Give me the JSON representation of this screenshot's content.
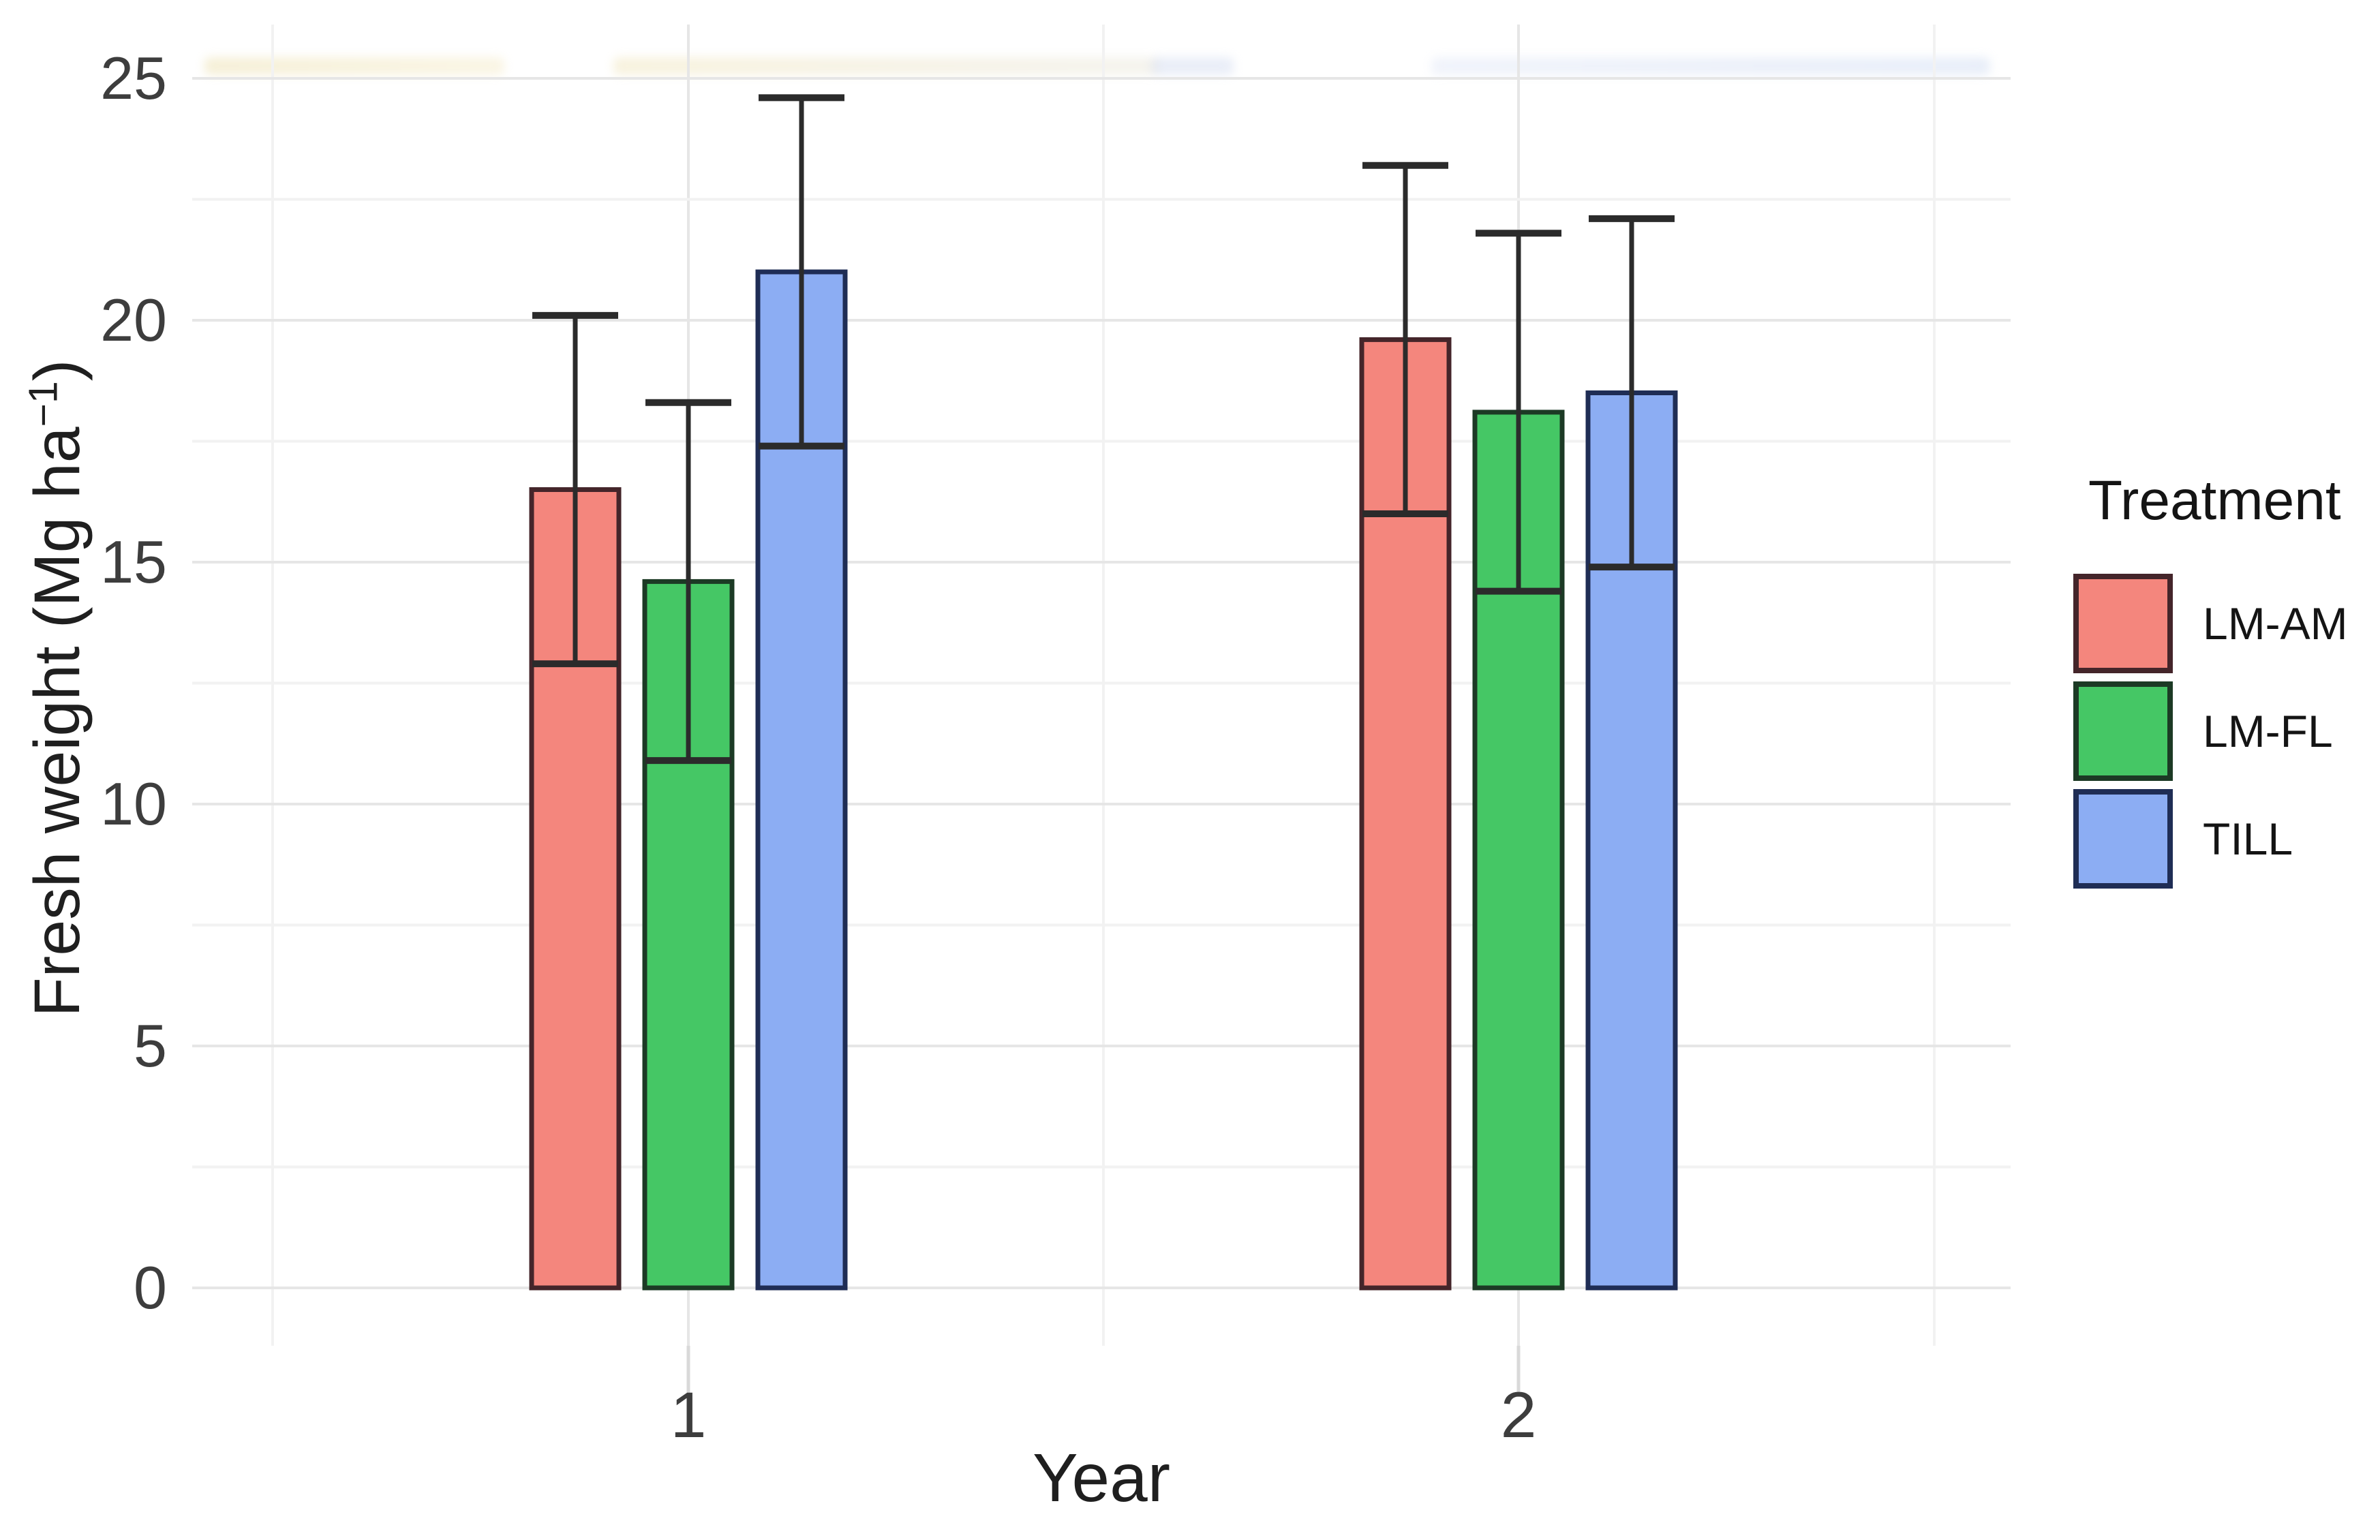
{
  "figure": {
    "background": "#ffffff",
    "note_top_edge": "faint remnants of a cropped-off title strip"
  },
  "chart_data": {
    "type": "bar",
    "title": "",
    "xlabel": "Year",
    "ylabel": "Fresh weight (Mg ha⁻¹)",
    "ylabel_parts": {
      "base": "Fresh weight (Mg ha",
      "sup": "−1",
      "end": ")"
    },
    "categories": [
      "1",
      "2"
    ],
    "series": [
      {
        "name": "LM-AM",
        "fill": "#f4867d",
        "edge": "#44252a",
        "values": [
          16.5,
          19.6
        ],
        "se": [
          3.6,
          3.6
        ]
      },
      {
        "name": "LM-FL",
        "fill": "#45c765",
        "edge": "#1c3a25",
        "values": [
          14.6,
          18.1
        ],
        "se": [
          3.7,
          3.7
        ]
      },
      {
        "name": "TILL",
        "fill": "#8cadf3",
        "edge": "#1f2d55",
        "values": [
          21.0,
          18.5
        ],
        "se": [
          3.6,
          3.6
        ]
      }
    ],
    "error_bars": {
      "style": "symmetric, caps at both ends, lower cap crosses the bar",
      "year1_upper": [
        20.1,
        18.3,
        24.6
      ],
      "year1_lower": [
        12.9,
        10.9,
        17.4
      ],
      "year2_upper": [
        23.2,
        21.8,
        22.1
      ],
      "year2_lower": [
        16.0,
        14.4,
        14.9
      ]
    },
    "ylim": [
      0,
      26.3
    ],
    "ytick_values": [
      0,
      5,
      10,
      15,
      20,
      25
    ],
    "ytick_minor_step": 2.5,
    "grid": {
      "horizontal_major": true,
      "horizontal_minor": true,
      "vertical_at_categories": true
    },
    "legend": {
      "title": "Treatment",
      "position": "right"
    },
    "colors": {
      "error_bar": "#2b2b2b",
      "axis_text": "#3d3d3d",
      "axis_title": "#1f1f1f",
      "grid_major": "#e6e6e6",
      "grid_minor": "#f2f2f2",
      "tick_mark": "#d9d9d9"
    }
  }
}
